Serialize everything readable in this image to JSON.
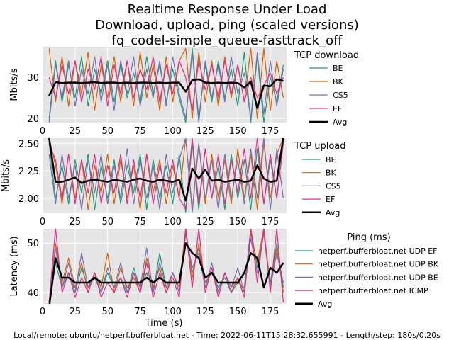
{
  "title": [
    "Realtime Response Under Load",
    "Download, upload, ping (scaled versions)",
    "fq_codel-simple_queue-fasttrack_off"
  ],
  "footer": "Local/remote: ubuntu/netperf.bufferbloat.net - Time: 2022-06-11T15:28:32.655991 - Length/step: 180s/0.20s",
  "colors": {
    "green": "#1b9e77",
    "orange": "#d95f02",
    "purple": "#7570b3",
    "pink": "#e7298a",
    "avg": "#000000",
    "panel_bg": "#e5e5e5",
    "grid": "#ffffff"
  },
  "chart_data": [
    {
      "type": "line",
      "ylabel": "Mbits/s",
      "xlabel": "",
      "xlim": [
        0,
        187.5
      ],
      "ylim": [
        19.0,
        37.4
      ],
      "xticks": [
        0,
        25,
        50,
        75,
        100,
        125,
        150,
        175
      ],
      "yticks": [
        20,
        30
      ],
      "grid": true,
      "legend_title": "TCP download",
      "legend_placement": "right",
      "x": [
        5,
        10,
        15,
        20,
        25,
        30,
        35,
        40,
        45,
        50,
        55,
        60,
        65,
        70,
        75,
        80,
        85,
        90,
        95,
        100,
        105,
        110,
        115,
        120,
        125,
        130,
        135,
        140,
        145,
        150,
        155,
        160,
        165,
        170,
        175,
        180,
        185
      ],
      "series": [
        {
          "name": "BE",
          "color": "#1b9e77",
          "values": [
            20,
            34,
            24,
            33,
            25,
            35,
            23,
            32,
            26,
            34,
            24,
            33,
            25,
            31,
            24,
            35,
            26,
            33,
            24,
            32,
            25,
            19,
            37,
            20,
            33,
            24,
            34,
            25,
            32,
            23,
            36,
            19,
            35,
            19,
            30,
            24,
            33
          ]
        },
        {
          "name": "BK",
          "color": "#d95f02",
          "values": [
            37,
            24,
            35,
            23,
            34,
            26,
            36,
            22,
            33,
            25,
            35,
            24,
            34,
            23,
            36,
            25,
            33,
            22,
            35,
            24,
            34,
            37,
            20,
            36,
            24,
            34,
            23,
            35,
            25,
            33,
            24,
            37,
            20,
            37,
            22,
            34,
            25
          ]
        },
        {
          "name": "CS5",
          "color": "#7570b3",
          "values": [
            19,
            33,
            25,
            34,
            23,
            32,
            26,
            35,
            24,
            33,
            22,
            34,
            26,
            35,
            23,
            32,
            25,
            34,
            23,
            35,
            26,
            20,
            36,
            19,
            34,
            25,
            33,
            24,
            35,
            26,
            31,
            20,
            36,
            21,
            34,
            23,
            32
          ]
        },
        {
          "name": "EF",
          "color": "#e7298a",
          "values": [
            30,
            25,
            33,
            26,
            34,
            24,
            32,
            27,
            35,
            23,
            33,
            26,
            34,
            25,
            32,
            27,
            35,
            24,
            33,
            26,
            34,
            30,
            22,
            34,
            27,
            33,
            25,
            34,
            26,
            33,
            24,
            30,
            25,
            28,
            31,
            26,
            30
          ]
        },
        {
          "name": "Avg",
          "color": "#000000",
          "values": [
            25.5,
            28.8,
            28.6,
            28.7,
            28.7,
            28.6,
            28.7,
            28.8,
            28.6,
            28.7,
            28.7,
            28.6,
            28.7,
            28.6,
            28.7,
            28.7,
            28.6,
            28.7,
            28.6,
            28.7,
            28.7,
            26.5,
            29.3,
            29.5,
            28.7,
            28.6,
            28.7,
            28.6,
            28.7,
            28.6,
            27.5,
            29.0,
            22.5,
            28.0,
            27.8,
            29.5,
            29.1
          ]
        }
      ]
    },
    {
      "type": "line",
      "ylabel": "Mbits/s",
      "xlabel": "",
      "xlim": [
        0,
        187.5
      ],
      "ylim": [
        1.865,
        2.547
      ],
      "xticks": [
        0,
        25,
        50,
        75,
        100,
        125,
        150,
        175
      ],
      "yticks": [
        2.0,
        2.25,
        2.5
      ],
      "grid": true,
      "legend_title": "TCP upload",
      "legend_placement": "right",
      "x": [
        5,
        10,
        15,
        20,
        25,
        30,
        35,
        40,
        45,
        50,
        55,
        60,
        65,
        70,
        75,
        80,
        85,
        90,
        95,
        100,
        105,
        110,
        115,
        120,
        125,
        130,
        135,
        140,
        145,
        150,
        155,
        160,
        165,
        170,
        175,
        180,
        185
      ],
      "series": [
        {
          "name": "BE",
          "color": "#1b9e77",
          "values": [
            2.5,
            2.0,
            2.3,
            1.95,
            2.35,
            2.05,
            2.4,
            1.9,
            2.3,
            2.0,
            2.35,
            1.95,
            2.3,
            2.05,
            2.4,
            1.9,
            2.35,
            2.0,
            2.3,
            1.95,
            2.4,
            1.87,
            2.5,
            1.9,
            2.45,
            2.0,
            2.3,
            1.9,
            2.4,
            2.0,
            2.35,
            1.9,
            2.45,
            1.95,
            2.35,
            2.0,
            2.5
          ]
        },
        {
          "name": "BK",
          "color": "#d95f02",
          "values": [
            2.55,
            2.3,
            1.95,
            2.4,
            2.0,
            2.35,
            1.9,
            2.3,
            2.05,
            2.4,
            1.95,
            2.35,
            2.0,
            2.3,
            1.9,
            2.4,
            2.05,
            2.35,
            1.95,
            2.3,
            2.0,
            2.55,
            1.9,
            2.5,
            1.95,
            2.4,
            2.0,
            2.35,
            1.95,
            2.45,
            2.0,
            2.4,
            1.9,
            2.5,
            2.0,
            2.4,
            2.55
          ]
        },
        {
          "name": "CS5",
          "color": "#7570b3",
          "values": [
            2.4,
            1.95,
            2.4,
            2.0,
            2.3,
            1.9,
            2.35,
            2.05,
            2.4,
            1.95,
            2.3,
            2.0,
            2.45,
            1.95,
            2.35,
            2.0,
            2.3,
            1.9,
            2.4,
            2.05,
            2.35,
            2.55,
            1.87,
            2.5,
            2.0,
            2.35,
            1.9,
            2.4,
            2.0,
            2.35,
            1.95,
            2.45,
            2.0,
            2.55,
            1.9,
            2.45,
            2.0
          ]
        },
        {
          "name": "EF",
          "color": "#e7298a",
          "values": [
            2.5,
            2.35,
            2.0,
            2.4,
            1.95,
            2.35,
            2.05,
            2.4,
            1.95,
            2.3,
            2.05,
            2.4,
            1.95,
            2.35,
            2.0,
            2.4,
            1.95,
            2.3,
            2.05,
            2.35,
            2.0,
            1.9,
            2.55,
            1.95,
            2.45,
            2.0,
            2.4,
            1.95,
            2.35,
            2.05,
            2.45,
            2.0,
            2.55,
            1.95,
            2.4,
            2.0,
            2.5
          ]
        },
        {
          "name": "Avg",
          "color": "#000000",
          "values": [
            2.55,
            2.15,
            2.15,
            2.17,
            2.19,
            2.14,
            2.16,
            2.17,
            2.16,
            2.15,
            2.17,
            2.16,
            2.15,
            2.17,
            2.18,
            2.16,
            2.15,
            2.17,
            2.16,
            2.15,
            2.17,
            1.98,
            2.27,
            2.18,
            2.26,
            2.16,
            2.17,
            2.15,
            2.16,
            2.17,
            2.15,
            2.16,
            2.3,
            2.18,
            2.15,
            2.16,
            2.55
          ]
        }
      ]
    },
    {
      "type": "line",
      "ylabel": "Latency (ms)",
      "xlabel": "Time (s)",
      "xlim": [
        0,
        187.5
      ],
      "ylim": [
        37.7,
        52.9
      ],
      "xticks": [
        0,
        25,
        50,
        75,
        100,
        125,
        150,
        175
      ],
      "yticks": [
        40,
        50
      ],
      "grid": true,
      "legend_title": "Ping (ms)",
      "legend_placement": "right",
      "x": [
        5,
        10,
        15,
        20,
        25,
        30,
        35,
        40,
        45,
        50,
        55,
        60,
        65,
        70,
        75,
        80,
        85,
        90,
        95,
        100,
        105,
        110,
        115,
        120,
        125,
        130,
        135,
        140,
        145,
        150,
        155,
        160,
        165,
        170,
        175,
        180,
        185
      ],
      "series": [
        {
          "name": "netperf.bufferbloat.net UDP EF",
          "color": "#1b9e77",
          "values": [
            38,
            46,
            41,
            44,
            40,
            45,
            41,
            43,
            40,
            44,
            41,
            43,
            40,
            45,
            41,
            44,
            40,
            48,
            41,
            44,
            40,
            52,
            44,
            49,
            42,
            44,
            41,
            43,
            40,
            42,
            41,
            53,
            45,
            52,
            42,
            50,
            41
          ]
        },
        {
          "name": "netperf.bufferbloat.net UDP BK",
          "color": "#d95f02",
          "values": [
            38,
            50,
            42,
            47,
            41,
            46,
            40,
            44,
            41,
            48,
            40,
            45,
            41,
            43,
            40,
            47,
            41,
            45,
            40,
            44,
            41,
            53,
            43,
            50,
            41,
            45,
            40,
            44,
            41,
            43,
            40,
            52,
            46,
            53,
            41,
            49,
            40
          ]
        },
        {
          "name": "netperf.bufferbloat.net UDP BE",
          "color": "#7570b3",
          "values": [
            38,
            49,
            41,
            46,
            40,
            48,
            41,
            44,
            40,
            45,
            41,
            46,
            40,
            44,
            41,
            49,
            40,
            46,
            41,
            44,
            40,
            52,
            45,
            48,
            41,
            46,
            40,
            44,
            41,
            45,
            40,
            51,
            44,
            52,
            41,
            48,
            42
          ]
        },
        {
          "name": "netperf.bufferbloat.net ICMP",
          "color": "#e7298a",
          "values": [
            38,
            53,
            40,
            44,
            39,
            43,
            40,
            44,
            39,
            42,
            40,
            43,
            39,
            44,
            40,
            46,
            39,
            44,
            40,
            43,
            39,
            53,
            41,
            53,
            40,
            45,
            39,
            44,
            40,
            43,
            39,
            53,
            42,
            53,
            40,
            53,
            38
          ]
        },
        {
          "name": "Avg",
          "color": "#000000",
          "values": [
            37,
            47,
            43,
            43,
            42,
            42,
            42,
            43,
            42,
            42,
            42,
            42,
            42,
            42,
            42,
            43,
            42,
            43,
            42,
            42,
            42,
            50,
            48,
            47,
            43,
            44,
            42,
            42,
            42,
            42,
            44,
            48,
            47,
            41,
            45,
            44,
            46
          ]
        }
      ]
    }
  ]
}
